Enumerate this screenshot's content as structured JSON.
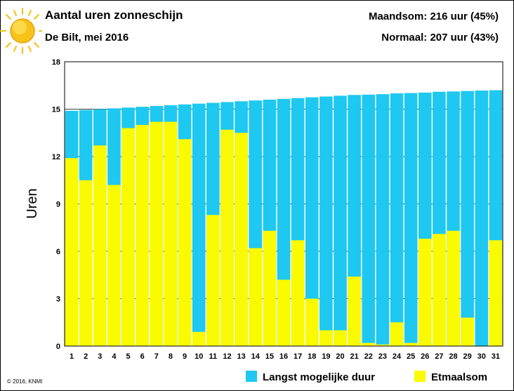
{
  "header": {
    "title": "Aantal uren zonneschijn",
    "subtitle": "De Bilt, mei 2016",
    "month_total": "Maandsom: 216 uur (45%)",
    "normal": "Normaal: 207 uur (43%)"
  },
  "icons": {
    "sun": "sun-icon"
  },
  "footer": {
    "copyright": "© 2016, KNMI"
  },
  "colors": {
    "max_duration": "#1ec8f0",
    "daily_total": "#fafa00",
    "grid": "#000000"
  },
  "chart_data": {
    "type": "bar",
    "categories": [
      "1",
      "2",
      "3",
      "4",
      "5",
      "6",
      "7",
      "8",
      "9",
      "10",
      "11",
      "12",
      "13",
      "14",
      "15",
      "16",
      "17",
      "18",
      "19",
      "20",
      "21",
      "22",
      "23",
      "24",
      "25",
      "26",
      "27",
      "28",
      "29",
      "30",
      "31"
    ],
    "ylabel": "Uren",
    "ylim": [
      0,
      18
    ],
    "yticks": [
      0,
      3,
      6,
      9,
      12,
      15,
      18
    ],
    "grid": true,
    "legend_position": "bottom",
    "series": [
      {
        "name": "Langst mogelijke duur",
        "color": "#1ec8f0",
        "values": [
          14.9,
          14.95,
          15.0,
          15.05,
          15.1,
          15.15,
          15.2,
          15.25,
          15.3,
          15.35,
          15.4,
          15.45,
          15.5,
          15.55,
          15.6,
          15.65,
          15.7,
          15.75,
          15.8,
          15.85,
          15.9,
          15.92,
          15.95,
          16.0,
          16.02,
          16.05,
          16.1,
          16.12,
          16.15,
          16.18,
          16.2
        ]
      },
      {
        "name": "Etmaalsom",
        "color": "#fafa00",
        "values": [
          11.9,
          10.5,
          12.7,
          10.2,
          13.8,
          14.0,
          14.2,
          14.2,
          13.1,
          0.9,
          8.3,
          13.7,
          13.5,
          6.2,
          7.3,
          4.2,
          6.7,
          3.0,
          1.0,
          1.0,
          4.4,
          0.2,
          0.1,
          1.5,
          0.2,
          6.8,
          7.1,
          7.3,
          1.8,
          0.0,
          6.7
        ]
      }
    ]
  }
}
